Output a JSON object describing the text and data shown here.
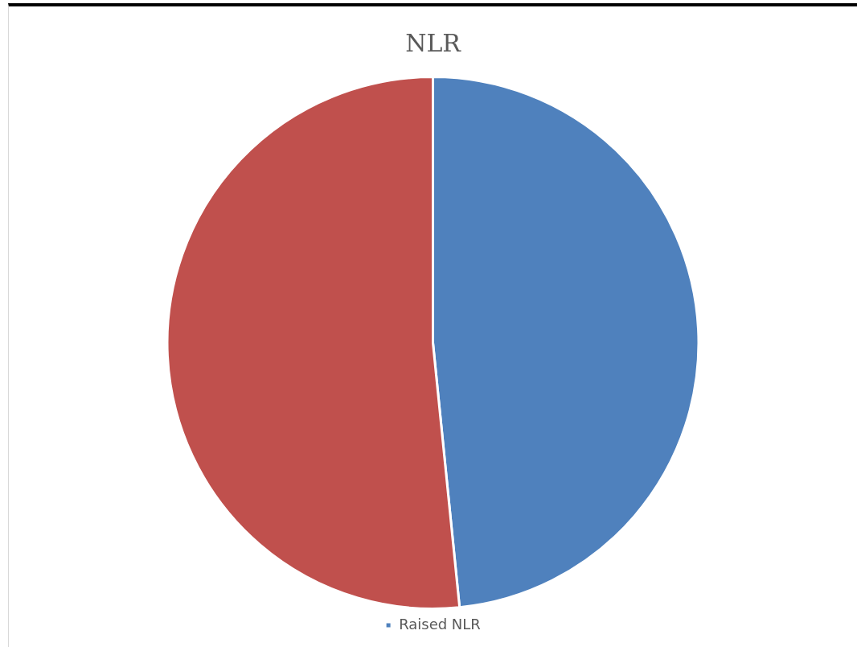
{
  "chart_data": {
    "type": "pie",
    "title": "NLR",
    "categories": [
      "Raised NLR",
      null
    ],
    "values": [
      48.4,
      51.6
    ],
    "colors": [
      "#4f81bd",
      "#c0504d"
    ],
    "legend": "bottom"
  }
}
